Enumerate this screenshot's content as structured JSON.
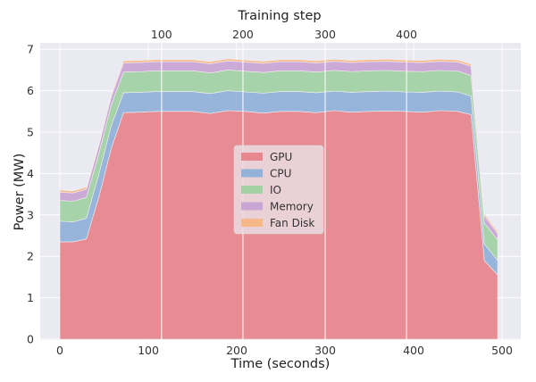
{
  "chart_data": {
    "type": "area",
    "stacked": true,
    "xlabel": "Time (seconds)",
    "ylabel": "Power (MW)",
    "top_xlabel": "Training step",
    "xlim": [
      -22,
      522
    ],
    "ylim": [
      0,
      7.1
    ],
    "xticks": [
      0,
      100,
      200,
      300,
      400,
      500
    ],
    "yticks": [
      0,
      1,
      2,
      3,
      4,
      5,
      6,
      7
    ],
    "top_xticks": [
      {
        "label": "100",
        "time_seconds": 115
      },
      {
        "label": "200",
        "time_seconds": 207
      },
      {
        "label": "300",
        "time_seconds": 300
      },
      {
        "label": "400",
        "time_seconds": 392
      }
    ],
    "grid": true,
    "background": "#eaeaf2",
    "legend_placement": "center",
    "x": [
      0,
      15,
      30,
      45,
      58,
      72,
      90,
      110,
      130,
      150,
      170,
      190,
      210,
      230,
      250,
      270,
      290,
      310,
      330,
      350,
      370,
      390,
      410,
      430,
      450,
      465,
      480,
      495
    ],
    "series": [
      {
        "name": "GPU",
        "color": "#e8878e",
        "values": [
          2.35,
          2.35,
          2.42,
          3.5,
          4.6,
          5.47,
          5.48,
          5.5,
          5.5,
          5.5,
          5.45,
          5.52,
          5.5,
          5.46,
          5.5,
          5.5,
          5.47,
          5.52,
          5.48,
          5.5,
          5.51,
          5.5,
          5.48,
          5.52,
          5.5,
          5.42,
          1.9,
          1.55
        ]
      },
      {
        "name": "CPU",
        "color": "#92b2d9",
        "values": [
          0.5,
          0.48,
          0.5,
          0.55,
          0.55,
          0.48,
          0.48,
          0.48,
          0.48,
          0.48,
          0.48,
          0.48,
          0.47,
          0.48,
          0.48,
          0.48,
          0.48,
          0.47,
          0.48,
          0.48,
          0.48,
          0.47,
          0.48,
          0.47,
          0.47,
          0.45,
          0.4,
          0.35
        ]
      },
      {
        "name": "IO",
        "color": "#a2d2a4",
        "values": [
          0.5,
          0.5,
          0.5,
          0.5,
          0.5,
          0.5,
          0.5,
          0.5,
          0.5,
          0.5,
          0.5,
          0.5,
          0.5,
          0.5,
          0.5,
          0.5,
          0.5,
          0.5,
          0.5,
          0.5,
          0.5,
          0.5,
          0.5,
          0.5,
          0.5,
          0.5,
          0.5,
          0.5
        ]
      },
      {
        "name": "Memory",
        "color": "#c9a6d6",
        "values": [
          0.2,
          0.2,
          0.2,
          0.2,
          0.2,
          0.22,
          0.22,
          0.22,
          0.22,
          0.22,
          0.22,
          0.22,
          0.22,
          0.22,
          0.22,
          0.22,
          0.22,
          0.22,
          0.22,
          0.22,
          0.22,
          0.22,
          0.22,
          0.22,
          0.22,
          0.22,
          0.18,
          0.15
        ]
      },
      {
        "name": "Fan Disk",
        "color": "#f6b886",
        "values": [
          0.05,
          0.05,
          0.05,
          0.05,
          0.05,
          0.05,
          0.05,
          0.05,
          0.05,
          0.05,
          0.05,
          0.05,
          0.05,
          0.05,
          0.05,
          0.05,
          0.05,
          0.05,
          0.05,
          0.05,
          0.05,
          0.05,
          0.05,
          0.05,
          0.05,
          0.05,
          0.05,
          0.05
        ]
      }
    ]
  }
}
